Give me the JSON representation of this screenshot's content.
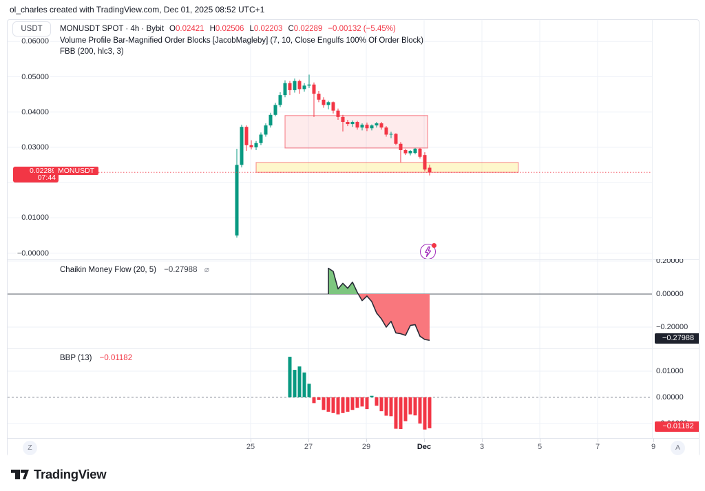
{
  "attribution": "ol_charles created with TradingView.com, Dec 01, 2025 08:52 UTC+1",
  "legend": {
    "currency": "USDT",
    "symbol": "MONUSDT SPOT · 4h · Bybit",
    "o_label": "O",
    "o_value": "0.02421",
    "h_label": "H",
    "h_value": "0.02506",
    "l_label": "L",
    "l_value": "0.02203",
    "c_label": "C",
    "c_value": "0.02289",
    "change": "−0.00132 (−5.45%)",
    "indicator_line1": "Volume Profile Bar-Magnified Order Blocks [JacobMagleby] (7, 10, Close Engulfs 100% Of Order Block)",
    "indicator_line2": "FBB (200, hlc3, 3)"
  },
  "price_scale": {
    "ticks": [
      {
        "text": "0.06000",
        "price": 0.06
      },
      {
        "text": "0.05000",
        "price": 0.05
      },
      {
        "text": "0.04000",
        "price": 0.04
      },
      {
        "text": "0.03000",
        "price": 0.03
      },
      {
        "text": "0.01000",
        "price": 0.01
      },
      {
        "text": "−0.00000",
        "price": 0.0
      }
    ],
    "badge_price": "0.02289",
    "badge_countdown": "07:44",
    "badge_symbol": "MONUSDT"
  },
  "cmf": {
    "title": "Chaikin Money Flow (20, 5)",
    "value": "−0.27988",
    "empty_icon": "⌀",
    "ticks": [
      {
        "text": "0.20000",
        "v": 0.2
      },
      {
        "text": "0.00000",
        "v": 0.0
      },
      {
        "text": "−0.20000",
        "v": -0.2
      }
    ],
    "badge": "−0.27988"
  },
  "bbp": {
    "title": "BBP (13)",
    "value": "−0.01182",
    "ticks": [
      {
        "text": "0.01000",
        "v": 0.01
      },
      {
        "text": "0.00000",
        "v": 0.0
      },
      {
        "text": "−0.01000",
        "v": -0.01
      }
    ],
    "badge": "−0.01182"
  },
  "time_axis": {
    "labels": [
      {
        "text": "25",
        "bold": false
      },
      {
        "text": "27",
        "bold": false
      },
      {
        "text": "29",
        "bold": false
      },
      {
        "text": "Dec",
        "bold": true
      },
      {
        "text": "3",
        "bold": false
      },
      {
        "text": "5",
        "bold": false
      },
      {
        "text": "7",
        "bold": false
      },
      {
        "text": "9",
        "bold": false
      }
    ],
    "left_button": "Z",
    "right_button": "A"
  },
  "footer": {
    "logo_text": "TradingView"
  },
  "colors": {
    "up": "#089981",
    "down": "#f23645",
    "grid": "#eef1f7",
    "box_pink_fill": "rgba(242,54,69,0.10)",
    "box_pink_border": "rgba(242,54,69,0.55)",
    "box_yellow_fill": "rgba(250,225,70,0.28)",
    "box_yellow_border": "rgba(242,54,69,0.50)",
    "price_line": "#f23645",
    "cmf_pos_fill": "#7dc67f",
    "cmf_neg_fill": "#f9777d",
    "cmf_line": "#262b36",
    "cmf_zero": "#565b66",
    "bbp_zero": "#9094a0",
    "badge_dark": "#1e222d",
    "accent_purple": "#a22dbb"
  },
  "chart_data": [
    {
      "type": "candlestick",
      "title": "MONUSDT SPOT · 4h · Bybit",
      "ylim": [
        -0.00166,
        0.0661
      ],
      "y_ticks": [
        0.0,
        0.01,
        0.02,
        0.03,
        0.04,
        0.05,
        0.06
      ],
      "x_tick_labels": [
        "25",
        "27",
        "29",
        "Dec",
        "3",
        "5",
        "7",
        "9"
      ],
      "price_line": 0.02289,
      "ohlc": [
        [
          0.005,
          0.0296,
          0.0044,
          0.025
        ],
        [
          0.025,
          0.0364,
          0.0243,
          0.0358
        ],
        [
          0.0358,
          0.0362,
          0.029,
          0.0306
        ],
        [
          0.0306,
          0.032,
          0.0294,
          0.03
        ],
        [
          0.03,
          0.0318,
          0.0292,
          0.0312
        ],
        [
          0.0312,
          0.0342,
          0.0306,
          0.0336
        ],
        [
          0.0336,
          0.0368,
          0.033,
          0.0362
        ],
        [
          0.0362,
          0.0398,
          0.0356,
          0.0392
        ],
        [
          0.0392,
          0.0426,
          0.0388,
          0.042
        ],
        [
          0.042,
          0.0456,
          0.0414,
          0.0448
        ],
        [
          0.0448,
          0.049,
          0.0442,
          0.0482
        ],
        [
          0.0482,
          0.0488,
          0.0448,
          0.0462
        ],
        [
          0.0462,
          0.0495,
          0.0455,
          0.0488
        ],
        [
          0.0488,
          0.0492,
          0.0452,
          0.0465
        ],
        [
          0.0465,
          0.0482,
          0.0458,
          0.0475
        ],
        [
          0.0475,
          0.0506,
          0.0468,
          0.0478
        ],
        [
          0.0478,
          0.0484,
          0.0386,
          0.0452
        ],
        [
          0.0452,
          0.046,
          0.0428,
          0.0435
        ],
        [
          0.0435,
          0.0442,
          0.0412,
          0.042
        ],
        [
          0.042,
          0.0432,
          0.0408,
          0.0428
        ],
        [
          0.0428,
          0.043,
          0.0396,
          0.0404
        ],
        [
          0.0404,
          0.041,
          0.0378,
          0.0386
        ],
        [
          0.0386,
          0.0392,
          0.0345,
          0.0372
        ],
        [
          0.0372,
          0.0378,
          0.036,
          0.0366
        ],
        [
          0.0366,
          0.0376,
          0.0358,
          0.0372
        ],
        [
          0.0372,
          0.0375,
          0.035,
          0.0356
        ],
        [
          0.0356,
          0.0368,
          0.0348,
          0.0364
        ],
        [
          0.0364,
          0.037,
          0.0346,
          0.0354
        ],
        [
          0.0354,
          0.0365,
          0.0348,
          0.0362
        ],
        [
          0.0362,
          0.0372,
          0.0356,
          0.0368
        ],
        [
          0.0368,
          0.0372,
          0.035,
          0.0356
        ],
        [
          0.0356,
          0.036,
          0.033,
          0.0336
        ],
        [
          0.0336,
          0.0344,
          0.0326,
          0.0338
        ],
        [
          0.0338,
          0.034,
          0.0306,
          0.031
        ],
        [
          0.031,
          0.0315,
          0.0257,
          0.0292
        ],
        [
          0.0292,
          0.0296,
          0.0278,
          0.0283
        ],
        [
          0.0283,
          0.0292,
          0.0277,
          0.029
        ],
        [
          0.0284,
          0.0298,
          0.028,
          0.0296
        ],
        [
          0.0296,
          0.0298,
          0.0268,
          0.0273
        ],
        [
          0.0278,
          0.0286,
          0.0232,
          0.0237
        ],
        [
          0.02421,
          0.02506,
          0.02203,
          0.02289
        ]
      ],
      "boxes": [
        {
          "name": "order-block-box",
          "from_candle": 10,
          "to_candle": 39.6,
          "top": 0.039,
          "bottom": 0.0298,
          "fill": "pink"
        },
        {
          "name": "support-zone-box",
          "from_candle": 4,
          "to_candle": 58.4,
          "top": 0.0257,
          "bottom": 0.0229,
          "fill": "yellow"
        }
      ]
    },
    {
      "type": "area",
      "title": "Chaikin Money Flow (20, 5)",
      "start_candle": 19,
      "ylim": [
        -0.329,
        0.2125
      ],
      "y_ticks": [
        0.2,
        0.0,
        -0.2
      ],
      "last_value": -0.27988,
      "values": [
        0.156,
        0.137,
        0.031,
        0.065,
        0.035,
        0.072,
        0.01,
        -0.04,
        -0.012,
        -0.046,
        -0.115,
        -0.15,
        -0.2,
        -0.165,
        -0.235,
        -0.24,
        -0.25,
        -0.19,
        -0.185,
        -0.255,
        -0.275,
        -0.27988
      ]
    },
    {
      "type": "bar",
      "title": "BBP (13)",
      "start_candle": 11,
      "ylim": [
        -0.01553,
        0.01868
      ],
      "y_ticks": [
        0.01,
        0.0,
        -0.01
      ],
      "last_value": -0.01182,
      "values": [
        0.0155,
        0.0105,
        0.0118,
        0.0095,
        0.0052,
        -0.0022,
        -0.001,
        -0.0048,
        -0.0055,
        -0.006,
        -0.0065,
        -0.006,
        -0.0055,
        -0.0048,
        -0.004,
        -0.0035,
        -0.0045,
        0.0006,
        -0.0032,
        -0.0053,
        -0.007,
        -0.0072,
        -0.012,
        -0.0121,
        -0.0091,
        -0.0065,
        -0.0069,
        -0.01,
        -0.0123,
        -0.01182
      ]
    }
  ]
}
